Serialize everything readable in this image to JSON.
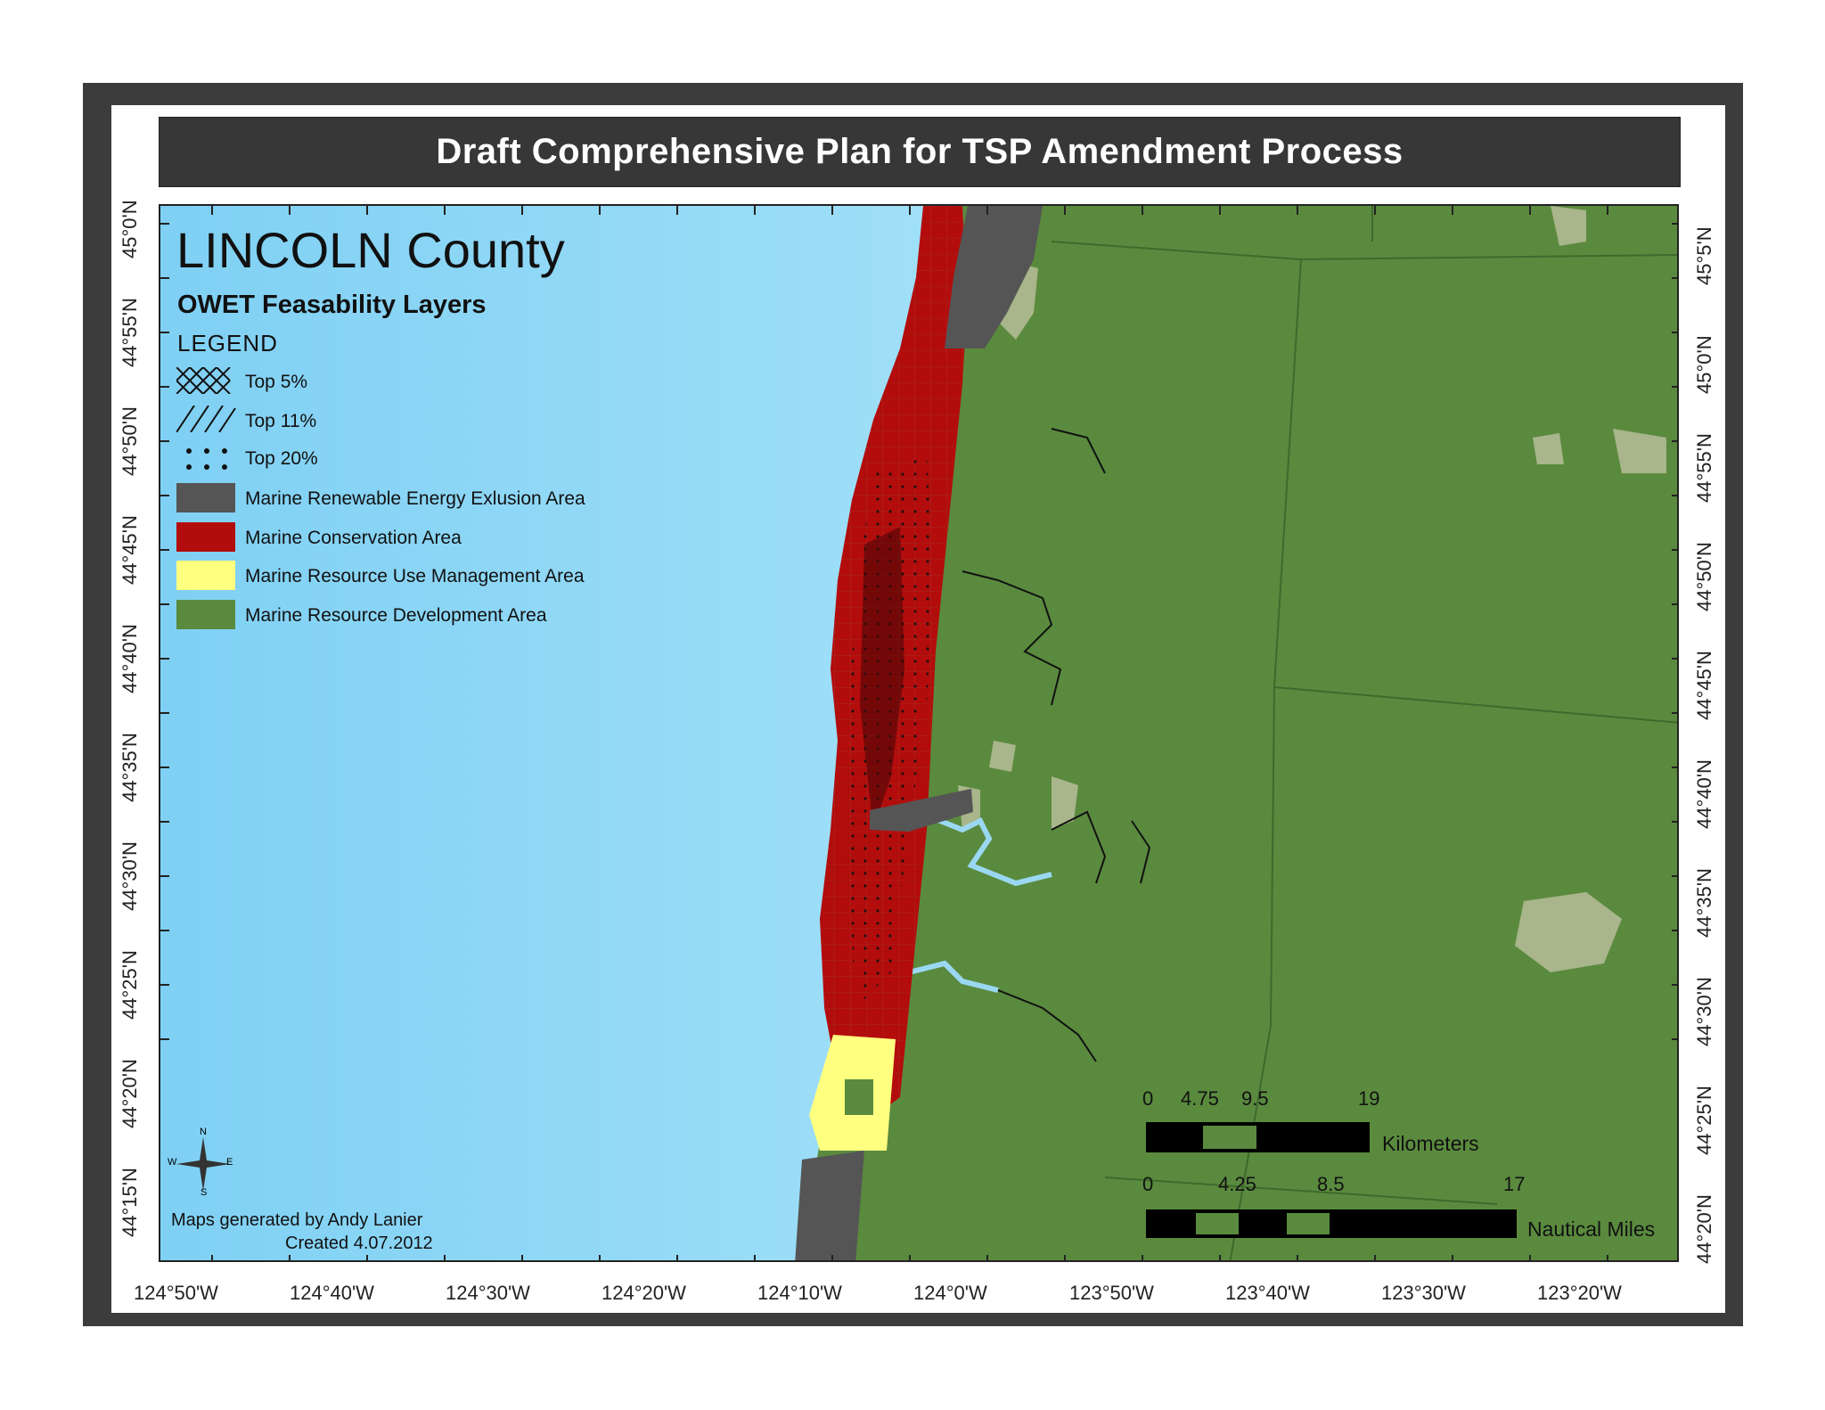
{
  "title": "Draft Comprehensive Plan for TSP Amendment Process",
  "county_title": "LINCOLN County",
  "layers_title": "OWET Feasability Layers",
  "legend": {
    "heading": "LEGEND",
    "items": [
      {
        "label": "Top 5%",
        "pattern": "crosshatch"
      },
      {
        "label": "Top 11%",
        "pattern": "diagonal"
      },
      {
        "label": "Top 20%",
        "pattern": "dots"
      },
      {
        "label": "Marine Renewable Energy Exlusion Area",
        "color": "#555555"
      },
      {
        "label": "Marine Conservation Area",
        "color": "#b30c0c"
      },
      {
        "label": "Marine Resource Use Management Area",
        "color": "#ffff80"
      },
      {
        "label": "Marine Resource Development Area",
        "color": "#5a8a3e"
      }
    ]
  },
  "left_lat_labels": [
    "45°0'N",
    "44°55'N",
    "44°50'N",
    "44°45'N",
    "44°40'N",
    "44°35'N",
    "44°30'N",
    "44°25'N",
    "44°20'N",
    "44°15'N"
  ],
  "right_lat_labels": [
    "45°5'N",
    "45°0'N",
    "44°55'N",
    "44°50'N",
    "44°45'N",
    "44°40'N",
    "44°35'N",
    "44°30'N",
    "44°25'N",
    "44°20'N"
  ],
  "lon_labels": [
    "124°50'W",
    "124°40'W",
    "124°30'W",
    "124°20'W",
    "124°10'W",
    "124°0'W",
    "123°50'W",
    "123°40'W",
    "123°30'W",
    "123°20'W"
  ],
  "scale_km": {
    "ticks": [
      "0",
      "4.75",
      "9.5",
      "19"
    ],
    "unit": "Kilometers"
  },
  "scale_nm": {
    "ticks": [
      "0",
      "4.25",
      "8.5",
      "17"
    ],
    "unit": "Nautical Miles"
  },
  "compass": {
    "n": "N",
    "s": "S",
    "e": "E",
    "w": "W"
  },
  "credits": {
    "line1": "Maps generated by Andy Lanier",
    "line2": "Created 4.07.2012"
  },
  "colors": {
    "ocean": "#8fd6f5",
    "land": "#5a8a3e",
    "conservation": "#b30c0c",
    "exclusion": "#555555",
    "use_management": "#ffff80"
  }
}
